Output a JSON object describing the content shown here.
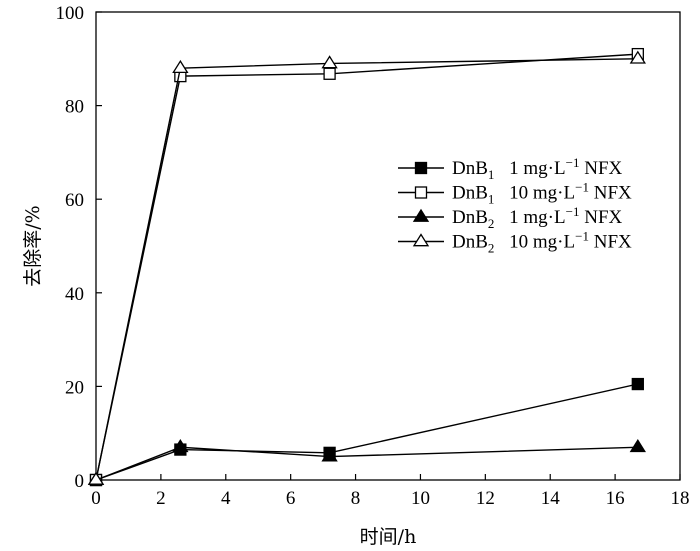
{
  "chart_data": {
    "type": "line",
    "title": "",
    "xlabel": "时间/h",
    "ylabel": "去除率/%",
    "xlim": [
      0,
      18
    ],
    "ylim": [
      0,
      100
    ],
    "xticks": [
      0,
      2,
      4,
      6,
      8,
      10,
      12,
      14,
      16,
      18
    ],
    "yticks": [
      0,
      20,
      40,
      60,
      80,
      100
    ],
    "grid": false,
    "legend_position": "right",
    "series": [
      {
        "name": "DnB1 1 mg·L−1 NFX",
        "label_parts": {
          "base": "DnB",
          "sub": "1",
          "conc": "1 mg·L",
          "sup": "−1",
          "tail": " NFX"
        },
        "marker": "square-filled",
        "x": [
          0,
          2.6,
          7.2,
          16.7
        ],
        "y": [
          0,
          6.5,
          5.8,
          20.5
        ]
      },
      {
        "name": "DnB1 10 mg·L−1 NFX",
        "label_parts": {
          "base": "DnB",
          "sub": "1",
          "conc": "10 mg·L",
          "sup": "−1",
          "tail": " NFX"
        },
        "marker": "square-open",
        "x": [
          0,
          2.6,
          7.2,
          16.7
        ],
        "y": [
          0,
          86.3,
          86.8,
          91.0
        ]
      },
      {
        "name": "DnB2 1 mg·L−1 NFX",
        "label_parts": {
          "base": "DnB",
          "sub": "2",
          "conc": "1 mg·L",
          "sup": "−1",
          "tail": " NFX"
        },
        "marker": "triangle-filled",
        "x": [
          0,
          2.6,
          7.2,
          16.7
        ],
        "y": [
          0,
          7.0,
          5.0,
          7.0
        ]
      },
      {
        "name": "DnB2 10 mg·L−1 NFX",
        "label_parts": {
          "base": "DnB",
          "sub": "2",
          "conc": "10 mg·L",
          "sup": "−1",
          "tail": " NFX"
        },
        "marker": "triangle-open",
        "x": [
          0,
          2.6,
          7.2,
          16.7
        ],
        "y": [
          0,
          88.0,
          89.0,
          90.0
        ]
      }
    ]
  }
}
